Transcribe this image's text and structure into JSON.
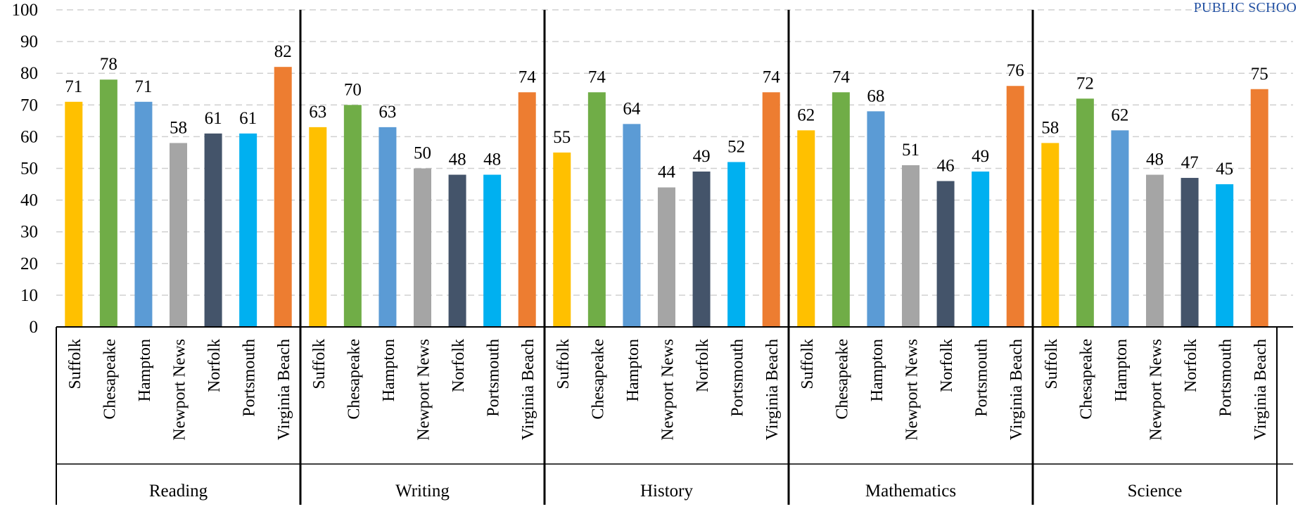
{
  "corner_label": "PUBLIC SCHOO",
  "chart_data": {
    "type": "bar",
    "title": "",
    "xlabel": "",
    "ylabel": "",
    "ylim": [
      0,
      100
    ],
    "yticks": [
      0,
      10,
      20,
      30,
      40,
      50,
      60,
      70,
      80,
      90,
      100
    ],
    "grid": "horizontal dashed",
    "legend": "none",
    "categories": [
      "Suffolk",
      "Chesapeake",
      "Hampton",
      "Newport News",
      "Norfolk",
      "Portsmouth",
      "Virginia Beach"
    ],
    "category_colors": [
      "#FFC000",
      "#70AD47",
      "#5B9BD5",
      "#A5A5A5",
      "#44546A",
      "#00B0F0",
      "#ED7D31"
    ],
    "groups": [
      {
        "name": "Reading",
        "values": [
          71,
          78,
          71,
          58,
          61,
          61,
          82
        ]
      },
      {
        "name": "Writing",
        "values": [
          63,
          70,
          63,
          50,
          48,
          48,
          74
        ]
      },
      {
        "name": "History",
        "values": [
          55,
          74,
          64,
          44,
          49,
          52,
          74
        ]
      },
      {
        "name": "Mathematics",
        "values": [
          62,
          74,
          68,
          51,
          46,
          49,
          76
        ]
      },
      {
        "name": "Science",
        "values": [
          58,
          72,
          62,
          48,
          47,
          45,
          75
        ]
      }
    ]
  }
}
